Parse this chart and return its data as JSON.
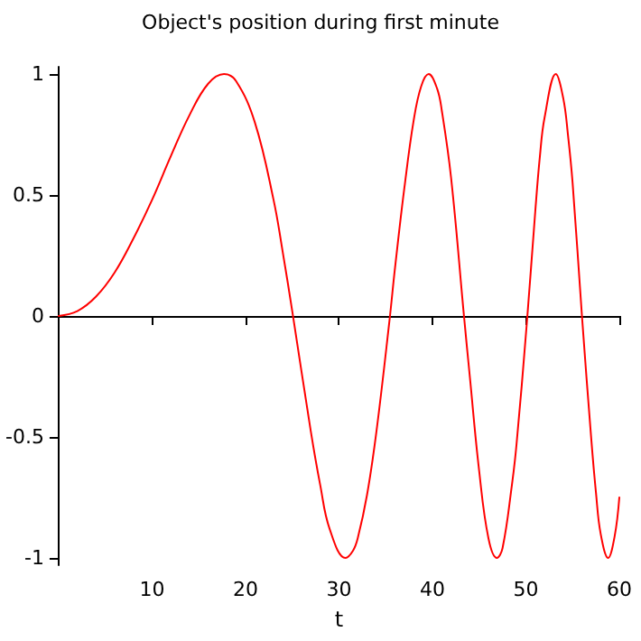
{
  "chart_data": {
    "type": "line",
    "title": "Object's position during first minute",
    "xlabel": "t",
    "x": [
      0,
      2,
      4,
      6,
      8,
      10,
      12,
      14,
      16,
      17.7,
      19,
      21,
      23,
      24,
      25,
      27,
      28,
      29,
      30.7,
      31.5,
      32,
      33,
      34,
      35.4,
      36,
      37,
      38,
      38.8,
      39.6,
      40.5,
      41,
      42,
      43.4,
      44,
      45,
      46,
      46.9,
      47.5,
      48.5,
      49,
      50.1,
      51,
      51.5,
      52,
      53.2,
      54,
      54.5,
      55,
      56,
      57,
      57.5,
      58,
      58.8,
      59.5,
      60
    ],
    "series": [
      {
        "color": "#ff0000",
        "values": [
          0,
          0.02,
          0.08,
          0.18,
          0.32,
          0.48,
          0.66,
          0.83,
          0.96,
          1,
          0.97,
          0.8,
          0.48,
          0.26,
          0.02,
          -0.48,
          -0.7,
          -0.88,
          -1,
          -0.97,
          -0.92,
          -0.74,
          -0.48,
          -0.02,
          0.2,
          0.53,
          0.81,
          0.95,
          1,
          0.94,
          0.85,
          0.57,
          -0.01,
          -0.25,
          -0.64,
          -0.92,
          -1,
          -0.96,
          -0.7,
          -0.53,
          -0.03,
          0.43,
          0.66,
          0.82,
          1,
          0.9,
          0.75,
          0.55,
          0,
          -0.51,
          -0.73,
          -0.9,
          -1,
          -0.91,
          -0.75
        ]
      }
    ],
    "xlim": [
      0,
      60
    ],
    "xticks": [
      10,
      20,
      30,
      40,
      50,
      60
    ],
    "ylim": [
      -1.03,
      1.03
    ],
    "yticks": [
      -1,
      -0.5,
      0,
      0.5,
      1
    ],
    "marker": "none",
    "line_style": "solid"
  }
}
